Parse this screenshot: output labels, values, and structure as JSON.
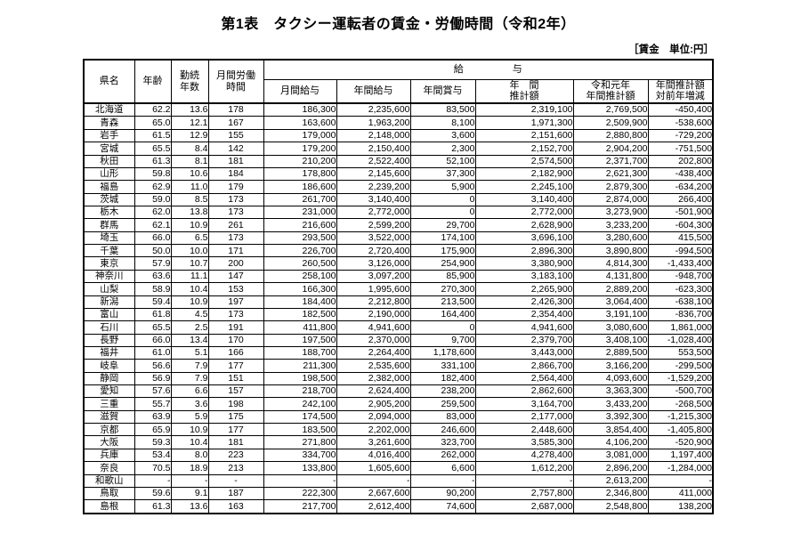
{
  "title": "第1表　タクシー運転者の賃金・労働時間（令和2年）",
  "unit_note": "［賃金　単位:円］",
  "table": {
    "header": {
      "prefecture": "県名",
      "age": "年齢",
      "tenure_line1": "勤続",
      "tenure_line2": "年数",
      "hours_line1": "月間労働",
      "hours_line2": "時間",
      "salary_group": "給　　　　　与",
      "monthly_salary": "月間給与",
      "annual_salary": "年間給与",
      "annual_bonus": "年間賞与",
      "annual_estimate_line1": "年　間",
      "annual_estimate_line2": "推計額",
      "reiwa1_line1": "令和元年",
      "reiwa1_line2": "年間推計額",
      "change_line1": "年間推計額",
      "change_line2": "対前年増減"
    },
    "column_keys": [
      "prefecture",
      "age",
      "tenure-years",
      "monthly-hours",
      "monthly-salary",
      "annual-salary",
      "annual-bonus",
      "annual-estimate",
      "reiwa1-annual-estimate",
      "yoy-change"
    ],
    "rows": [
      [
        "北海道",
        "62.2",
        "13.6",
        "178",
        "186,300",
        "2,235,600",
        "83,500",
        "2,319,100",
        "2,769,500",
        "-450,400"
      ],
      [
        "青森",
        "65.0",
        "12.1",
        "167",
        "163,600",
        "1,963,200",
        "8,100",
        "1,971,300",
        "2,509,900",
        "-538,600"
      ],
      [
        "岩手",
        "61.5",
        "12.9",
        "155",
        "179,000",
        "2,148,000",
        "3,600",
        "2,151,600",
        "2,880,800",
        "-729,200"
      ],
      [
        "宮城",
        "65.5",
        "8.4",
        "142",
        "179,200",
        "2,150,400",
        "2,300",
        "2,152,700",
        "2,904,200",
        "-751,500"
      ],
      [
        "秋田",
        "61.3",
        "8.1",
        "181",
        "210,200",
        "2,522,400",
        "52,100",
        "2,574,500",
        "2,371,700",
        "202,800"
      ],
      [
        "山形",
        "59.8",
        "10.6",
        "184",
        "178,800",
        "2,145,600",
        "37,300",
        "2,182,900",
        "2,621,300",
        "-438,400"
      ],
      [
        "福島",
        "62.9",
        "11.0",
        "179",
        "186,600",
        "2,239,200",
        "5,900",
        "2,245,100",
        "2,879,300",
        "-634,200"
      ],
      [
        "茨城",
        "59.0",
        "8.5",
        "173",
        "261,700",
        "3,140,400",
        "0",
        "3,140,400",
        "2,874,000",
        "266,400"
      ],
      [
        "栃木",
        "62.0",
        "13.8",
        "173",
        "231,000",
        "2,772,000",
        "0",
        "2,772,000",
        "3,273,900",
        "-501,900"
      ],
      [
        "群馬",
        "62.1",
        "10.9",
        "261",
        "216,600",
        "2,599,200",
        "29,700",
        "2,628,900",
        "3,233,200",
        "-604,300"
      ],
      [
        "埼玉",
        "66.0",
        "6.5",
        "173",
        "293,500",
        "3,522,000",
        "174,100",
        "3,696,100",
        "3,280,600",
        "415,500"
      ],
      [
        "千葉",
        "50.0",
        "10.0",
        "171",
        "226,700",
        "2,720,400",
        "175,900",
        "2,896,300",
        "3,890,800",
        "-994,500"
      ],
      [
        "東京",
        "57.9",
        "10.7",
        "200",
        "260,500",
        "3,126,000",
        "254,900",
        "3,380,900",
        "4,814,300",
        "-1,433,400"
      ],
      [
        "神奈川",
        "63.6",
        "11.1",
        "147",
        "258,100",
        "3,097,200",
        "85,900",
        "3,183,100",
        "4,131,800",
        "-948,700"
      ],
      [
        "山梨",
        "58.9",
        "10.4",
        "153",
        "166,300",
        "1,995,600",
        "270,300",
        "2,265,900",
        "2,889,200",
        "-623,300"
      ],
      [
        "新潟",
        "59.4",
        "10.9",
        "197",
        "184,400",
        "2,212,800",
        "213,500",
        "2,426,300",
        "3,064,400",
        "-638,100"
      ],
      [
        "富山",
        "61.8",
        "4.5",
        "173",
        "182,500",
        "2,190,000",
        "164,400",
        "2,354,400",
        "3,191,100",
        "-836,700"
      ],
      [
        "石川",
        "65.5",
        "2.5",
        "191",
        "411,800",
        "4,941,600",
        "0",
        "4,941,600",
        "3,080,600",
        "1,861,000"
      ],
      [
        "長野",
        "66.0",
        "13.4",
        "170",
        "197,500",
        "2,370,000",
        "9,700",
        "2,379,700",
        "3,408,100",
        "-1,028,400"
      ],
      [
        "福井",
        "61.0",
        "5.1",
        "166",
        "188,700",
        "2,264,400",
        "1,178,600",
        "3,443,000",
        "2,889,500",
        "553,500"
      ],
      [
        "岐阜",
        "56.6",
        "7.9",
        "177",
        "211,300",
        "2,535,600",
        "331,100",
        "2,866,700",
        "3,166,200",
        "-299,500"
      ],
      [
        "静岡",
        "56.9",
        "7.9",
        "151",
        "198,500",
        "2,382,000",
        "182,400",
        "2,564,400",
        "4,093,600",
        "-1,529,200"
      ],
      [
        "愛知",
        "57.6",
        "6.6",
        "157",
        "218,700",
        "2,624,400",
        "238,200",
        "2,862,600",
        "3,363,300",
        "-500,700"
      ],
      [
        "三重",
        "55.7",
        "3.6",
        "198",
        "242,100",
        "2,905,200",
        "259,500",
        "3,164,700",
        "3,433,200",
        "-268,500"
      ],
      [
        "滋賀",
        "63.9",
        "5.9",
        "175",
        "174,500",
        "2,094,000",
        "83,000",
        "2,177,000",
        "3,392,300",
        "-1,215,300"
      ],
      [
        "京都",
        "65.9",
        "10.9",
        "177",
        "183,500",
        "2,202,000",
        "246,600",
        "2,448,600",
        "3,854,400",
        "-1,405,800"
      ],
      [
        "大阪",
        "59.3",
        "10.4",
        "181",
        "271,800",
        "3,261,600",
        "323,700",
        "3,585,300",
        "4,106,200",
        "-520,900"
      ],
      [
        "兵庫",
        "53.4",
        "8.0",
        "223",
        "334,700",
        "4,016,400",
        "262,000",
        "4,278,400",
        "3,081,000",
        "1,197,400"
      ],
      [
        "奈良",
        "70.5",
        "18.9",
        "213",
        "133,800",
        "1,605,600",
        "6,600",
        "1,612,200",
        "2,896,200",
        "-1,284,000"
      ],
      [
        "和歌山",
        "-",
        "-",
        "-",
        "-",
        "-",
        "-",
        "-",
        "2,613,200",
        "-"
      ],
      [
        "鳥取",
        "59.6",
        "9.1",
        "187",
        "222,300",
        "2,667,600",
        "90,200",
        "2,757,800",
        "2,346,800",
        "411,000"
      ],
      [
        "島根",
        "61.3",
        "13.6",
        "163",
        "217,700",
        "2,612,400",
        "74,600",
        "2,687,000",
        "2,548,800",
        "138,200"
      ]
    ]
  }
}
